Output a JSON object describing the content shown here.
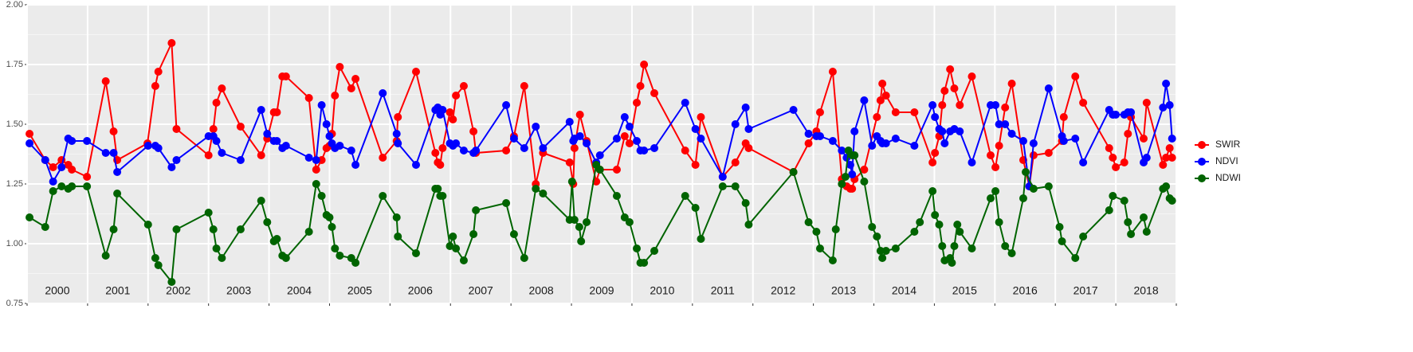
{
  "chart_data": {
    "type": "line",
    "xlim": [
      2000,
      2019
    ],
    "xticks": [
      2000,
      2001,
      2002,
      2003,
      2004,
      2005,
      2006,
      2007,
      2008,
      2009,
      2010,
      2011,
      2012,
      2013,
      2014,
      2015,
      2016,
      2017,
      2018,
      2019
    ],
    "ylim": [
      0.75,
      2.0
    ],
    "yticks": [
      {
        "value": 0.75,
        "label": "0.75"
      },
      {
        "value": 1.0,
        "label": "1.00"
      },
      {
        "value": 1.25,
        "label": "1.25"
      },
      {
        "value": 1.5,
        "label": "1.50"
      },
      {
        "value": 1.75,
        "label": "1.75"
      },
      {
        "value": 2.0,
        "label": "2.00"
      }
    ],
    "grid": true,
    "legend": "right",
    "year_labels": [
      {
        "value": 2000.5,
        "label": "2000"
      },
      {
        "value": 2001.5,
        "label": "2001"
      },
      {
        "value": 2002.5,
        "label": "2002"
      },
      {
        "value": 2003.5,
        "label": "2003"
      },
      {
        "value": 2004.5,
        "label": "2004"
      },
      {
        "value": 2005.5,
        "label": "2005"
      },
      {
        "value": 2006.5,
        "label": "2006"
      },
      {
        "value": 2007.5,
        "label": "2007"
      },
      {
        "value": 2008.5,
        "label": "2008"
      },
      {
        "value": 2009.5,
        "label": "2009"
      },
      {
        "value": 2010.5,
        "label": "2010"
      },
      {
        "value": 2011.5,
        "label": "2011"
      },
      {
        "value": 2012.5,
        "label": "2012"
      },
      {
        "value": 2013.5,
        "label": "2013"
      },
      {
        "value": 2014.5,
        "label": "2014"
      },
      {
        "value": 2015.5,
        "label": "2015"
      },
      {
        "value": 2016.5,
        "label": "2016"
      },
      {
        "value": 2017.5,
        "label": "2017"
      },
      {
        "value": 2018.5,
        "label": "2018"
      }
    ],
    "series": [
      {
        "name": "SWIR",
        "color": "#ff0000",
        "x": [
          2000.04,
          2000.3,
          2000.43,
          2000.57,
          2000.68,
          2000.74,
          2000.99,
          2001.3,
          2001.43,
          2001.49,
          2001.99,
          2002.12,
          2002.17,
          2002.39,
          2002.47,
          2003.0,
          2003.08,
          2003.13,
          2003.22,
          2003.53,
          2003.87,
          2003.97,
          2004.08,
          2004.13,
          2004.22,
          2004.28,
          2004.66,
          2004.78,
          2004.87,
          2004.95,
          2005.0,
          2005.04,
          2005.09,
          2005.17,
          2005.36,
          2005.43,
          2005.88,
          2006.11,
          2006.13,
          2006.43,
          2006.75,
          2006.79,
          2006.83,
          2006.87,
          2006.99,
          2007.04,
          2007.09,
          2007.22,
          2007.38,
          2007.42,
          2007.92,
          2008.05,
          2008.22,
          2008.41,
          2008.53,
          2008.97,
          2009.03,
          2009.05,
          2009.14,
          2009.25,
          2009.41,
          2009.47,
          2009.75,
          2009.88,
          2009.96,
          2010.08,
          2010.14,
          2010.2,
          2010.37,
          2010.88,
          2011.05,
          2011.14,
          2011.5,
          2011.71,
          2011.88,
          2011.93,
          2012.67,
          2012.92,
          2013.05,
          2013.11,
          2013.32,
          2013.47,
          2013.55,
          2013.61,
          2013.64,
          2013.68,
          2013.84,
          2014.05,
          2014.11,
          2014.14,
          2014.2,
          2014.36,
          2014.67,
          2014.97,
          2015.01,
          2015.08,
          2015.13,
          2015.17,
          2015.26,
          2015.33,
          2015.42,
          2015.62,
          2015.93,
          2016.01,
          2016.07,
          2016.17,
          2016.28,
          2016.47,
          2016.57,
          2016.64,
          2016.89,
          2017.11,
          2017.14,
          2017.33,
          2017.46,
          2017.89,
          2017.95,
          2018.0,
          2018.14,
          2018.2,
          2018.25,
          2018.46,
          2018.51,
          2018.78,
          2018.83,
          2018.89,
          2018.93
        ],
        "values": [
          1.46,
          1.35,
          1.32,
          1.35,
          1.33,
          1.31,
          1.28,
          1.68,
          1.47,
          1.35,
          1.42,
          1.66,
          1.72,
          1.84,
          1.48,
          1.37,
          1.48,
          1.59,
          1.65,
          1.49,
          1.37,
          1.44,
          1.55,
          1.55,
          1.7,
          1.7,
          1.61,
          1.31,
          1.35,
          1.4,
          1.41,
          1.46,
          1.62,
          1.74,
          1.65,
          1.69,
          1.36,
          1.43,
          1.53,
          1.72,
          1.38,
          1.34,
          1.33,
          1.4,
          1.55,
          1.52,
          1.62,
          1.66,
          1.47,
          1.38,
          1.39,
          1.45,
          1.66,
          1.25,
          1.38,
          1.34,
          1.25,
          1.4,
          1.54,
          1.43,
          1.26,
          1.31,
          1.31,
          1.45,
          1.42,
          1.59,
          1.66,
          1.75,
          1.63,
          1.39,
          1.33,
          1.53,
          1.28,
          1.34,
          1.42,
          1.4,
          1.3,
          1.42,
          1.47,
          1.55,
          1.72,
          1.27,
          1.24,
          1.23,
          1.23,
          1.27,
          1.31,
          1.53,
          1.6,
          1.67,
          1.62,
          1.55,
          1.55,
          1.34,
          1.38,
          1.45,
          1.58,
          1.64,
          1.73,
          1.65,
          1.58,
          1.7,
          1.37,
          1.32,
          1.41,
          1.57,
          1.67,
          1.35,
          1.24,
          1.37,
          1.38,
          1.43,
          1.53,
          1.7,
          1.59,
          1.4,
          1.36,
          1.32,
          1.34,
          1.46,
          1.53,
          1.44,
          1.59,
          1.33,
          1.36,
          1.4,
          1.36
        ]
      },
      {
        "name": "NDVI",
        "color": "#0000ff",
        "x": [
          2000.04,
          2000.3,
          2000.43,
          2000.57,
          2000.68,
          2000.74,
          2000.99,
          2001.3,
          2001.43,
          2001.49,
          2002.0,
          2002.12,
          2002.17,
          2002.39,
          2002.47,
          2003.0,
          2003.08,
          2003.13,
          2003.22,
          2003.53,
          2003.87,
          2003.97,
          2004.08,
          2004.13,
          2004.22,
          2004.28,
          2004.66,
          2004.78,
          2004.87,
          2004.95,
          2005.0,
          2005.04,
          2005.09,
          2005.17,
          2005.36,
          2005.43,
          2005.88,
          2006.11,
          2006.13,
          2006.43,
          2006.75,
          2006.79,
          2006.83,
          2006.87,
          2006.99,
          2007.04,
          2007.09,
          2007.22,
          2007.38,
          2007.42,
          2007.92,
          2008.05,
          2008.22,
          2008.41,
          2008.53,
          2008.97,
          2009.03,
          2009.05,
          2009.14,
          2009.25,
          2009.41,
          2009.47,
          2009.75,
          2009.88,
          2009.96,
          2010.08,
          2010.14,
          2010.2,
          2010.37,
          2010.88,
          2011.05,
          2011.14,
          2011.5,
          2011.71,
          2011.88,
          2011.93,
          2012.67,
          2012.92,
          2013.05,
          2013.11,
          2013.32,
          2013.47,
          2013.55,
          2013.61,
          2013.64,
          2013.68,
          2013.84,
          2013.97,
          2014.05,
          2014.11,
          2014.14,
          2014.2,
          2014.36,
          2014.67,
          2014.97,
          2015.01,
          2015.08,
          2015.13,
          2015.17,
          2015.26,
          2015.33,
          2015.42,
          2015.62,
          2015.93,
          2016.01,
          2016.07,
          2016.17,
          2016.28,
          2016.47,
          2016.57,
          2016.64,
          2016.89,
          2017.11,
          2017.14,
          2017.33,
          2017.46,
          2017.89,
          2017.95,
          2018.0,
          2018.14,
          2018.2,
          2018.25,
          2018.46,
          2018.51,
          2018.78,
          2018.83,
          2018.89,
          2018.93
        ],
        "values": [
          1.42,
          1.35,
          1.26,
          1.32,
          1.44,
          1.43,
          1.43,
          1.38,
          1.38,
          1.3,
          1.41,
          1.41,
          1.4,
          1.32,
          1.35,
          1.45,
          1.45,
          1.43,
          1.38,
          1.35,
          1.56,
          1.46,
          1.43,
          1.43,
          1.4,
          1.41,
          1.36,
          1.35,
          1.58,
          1.5,
          1.45,
          1.42,
          1.4,
          1.41,
          1.39,
          1.33,
          1.63,
          1.46,
          1.42,
          1.33,
          1.56,
          1.57,
          1.54,
          1.56,
          1.42,
          1.41,
          1.42,
          1.39,
          1.38,
          1.39,
          1.58,
          1.44,
          1.4,
          1.49,
          1.4,
          1.51,
          1.43,
          1.44,
          1.45,
          1.42,
          1.34,
          1.37,
          1.44,
          1.53,
          1.49,
          1.43,
          1.39,
          1.39,
          1.4,
          1.59,
          1.48,
          1.44,
          1.28,
          1.5,
          1.57,
          1.48,
          1.56,
          1.46,
          1.45,
          1.45,
          1.43,
          1.39,
          1.36,
          1.33,
          1.29,
          1.47,
          1.6,
          1.41,
          1.45,
          1.43,
          1.42,
          1.42,
          1.44,
          1.41,
          1.58,
          1.53,
          1.48,
          1.47,
          1.42,
          1.47,
          1.48,
          1.47,
          1.34,
          1.58,
          1.58,
          1.5,
          1.5,
          1.46,
          1.43,
          1.24,
          1.42,
          1.65,
          1.45,
          1.43,
          1.44,
          1.34,
          1.56,
          1.54,
          1.54,
          1.54,
          1.55,
          1.55,
          1.34,
          1.36,
          1.57,
          1.67,
          1.58,
          1.44
        ]
      },
      {
        "name": "NDWI",
        "color": "#006400",
        "x": [
          2000.04,
          2000.3,
          2000.43,
          2000.57,
          2000.68,
          2000.74,
          2000.99,
          2001.3,
          2001.43,
          2001.49,
          2002.0,
          2002.12,
          2002.17,
          2002.39,
          2002.47,
          2003.0,
          2003.08,
          2003.13,
          2003.22,
          2003.53,
          2003.87,
          2003.97,
          2004.08,
          2004.13,
          2004.22,
          2004.28,
          2004.66,
          2004.78,
          2004.87,
          2004.95,
          2005.0,
          2005.04,
          2005.09,
          2005.17,
          2005.36,
          2005.43,
          2005.88,
          2006.11,
          2006.13,
          2006.43,
          2006.75,
          2006.79,
          2006.83,
          2006.87,
          2006.99,
          2007.04,
          2007.09,
          2007.22,
          2007.38,
          2007.42,
          2007.92,
          2008.05,
          2008.22,
          2008.41,
          2008.53,
          2008.97,
          2009.01,
          2009.05,
          2009.13,
          2009.16,
          2009.25,
          2009.41,
          2009.47,
          2009.75,
          2009.88,
          2009.96,
          2010.08,
          2010.14,
          2010.2,
          2010.37,
          2010.88,
          2011.05,
          2011.14,
          2011.5,
          2011.71,
          2011.88,
          2011.93,
          2012.67,
          2012.92,
          2013.05,
          2013.11,
          2013.32,
          2013.37,
          2013.47,
          2013.53,
          2013.58,
          2013.64,
          2013.68,
          2013.84,
          2013.97,
          2014.05,
          2014.11,
          2014.14,
          2014.2,
          2014.36,
          2014.67,
          2014.76,
          2014.97,
          2015.01,
          2015.08,
          2015.13,
          2015.17,
          2015.26,
          2015.29,
          2015.33,
          2015.38,
          2015.42,
          2015.62,
          2015.93,
          2016.01,
          2016.07,
          2016.17,
          2016.28,
          2016.47,
          2016.51,
          2016.64,
          2016.89,
          2017.07,
          2017.11,
          2017.33,
          2017.46,
          2017.89,
          2017.95,
          2018.14,
          2018.2,
          2018.25,
          2018.46,
          2018.51,
          2018.78,
          2018.83,
          2018.89,
          2018.93
        ],
        "values": [
          1.11,
          1.07,
          1.22,
          1.24,
          1.23,
          1.24,
          1.24,
          0.95,
          1.06,
          1.21,
          1.08,
          0.94,
          0.91,
          0.84,
          1.06,
          1.13,
          1.06,
          0.98,
          0.94,
          1.06,
          1.18,
          1.09,
          1.01,
          1.02,
          0.95,
          0.94,
          1.05,
          1.25,
          1.2,
          1.12,
          1.11,
          1.07,
          0.98,
          0.95,
          0.94,
          0.92,
          1.2,
          1.11,
          1.03,
          0.96,
          1.23,
          1.23,
          1.2,
          1.2,
          0.99,
          1.03,
          0.98,
          0.93,
          1.04,
          1.14,
          1.17,
          1.04,
          0.94,
          1.23,
          1.21,
          1.1,
          1.26,
          1.1,
          1.07,
          1.01,
          1.09,
          1.33,
          1.31,
          1.2,
          1.11,
          1.09,
          0.98,
          0.92,
          0.92,
          0.97,
          1.2,
          1.15,
          1.02,
          1.24,
          1.24,
          1.17,
          1.08,
          1.3,
          1.09,
          1.05,
          0.98,
          0.93,
          1.06,
          1.25,
          1.28,
          1.39,
          1.37,
          1.37,
          1.26,
          1.07,
          1.03,
          0.97,
          0.94,
          0.97,
          0.98,
          1.05,
          1.09,
          1.22,
          1.12,
          1.08,
          0.99,
          0.93,
          0.94,
          0.92,
          0.99,
          1.08,
          1.05,
          0.98,
          1.19,
          1.22,
          1.09,
          0.99,
          0.96,
          1.19,
          1.3,
          1.23,
          1.24,
          1.07,
          1.01,
          0.94,
          1.03,
          1.14,
          1.2,
          1.18,
          1.09,
          1.04,
          1.11,
          1.05,
          1.23,
          1.24,
          1.19,
          1.18
        ]
      }
    ]
  }
}
